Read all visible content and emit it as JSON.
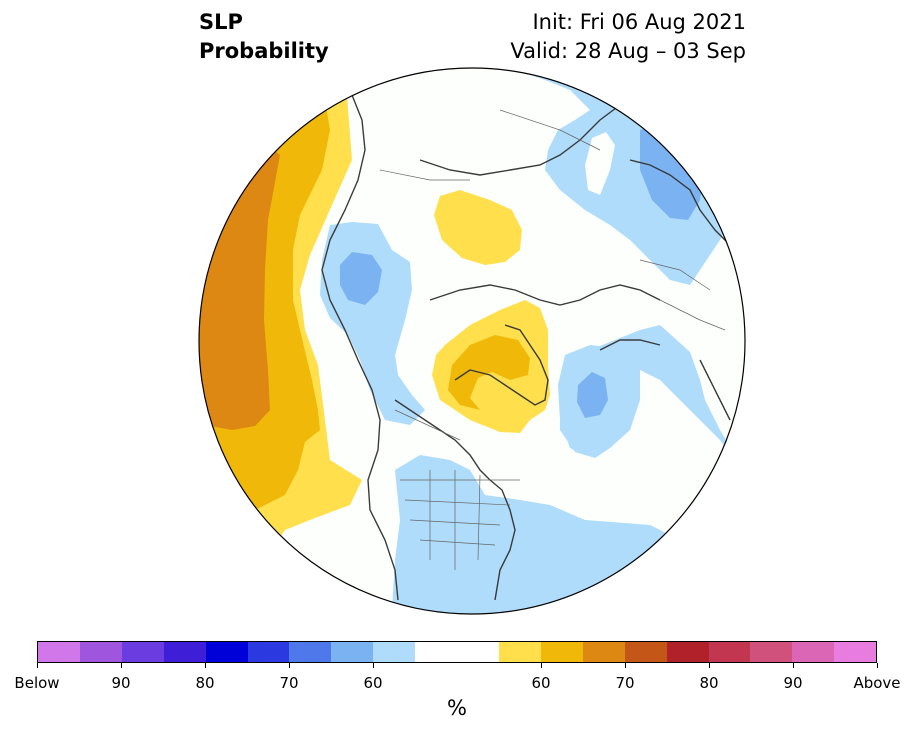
{
  "title": {
    "left_line1": "SLP",
    "left_line2": "Probability",
    "right_line1": "Init: Fri 06 Aug 2021",
    "right_line2": "Valid: 28 Aug – 03 Sep"
  },
  "colorbar": {
    "colors": [
      "#d277e9",
      "#a055df",
      "#6b3de0",
      "#3e1fd7",
      "#0000d9",
      "#2a3ae0",
      "#4f78ea",
      "#7bb3f2",
      "#aedcfa",
      "#ffffff",
      "#ffffff",
      "#ffe04c",
      "#f0b90a",
      "#dc8812",
      "#c45717",
      "#b0212a",
      "#c23650",
      "#cf517c",
      "#dc66b6",
      "#e87ddf"
    ],
    "labels": [
      {
        "text": "Below",
        "index": 0
      },
      {
        "text": "90",
        "index": 2
      },
      {
        "text": "80",
        "index": 4
      },
      {
        "text": "70",
        "index": 6
      },
      {
        "text": "60",
        "index": 8
      },
      {
        "text": "60",
        "index": 12
      },
      {
        "text": "70",
        "index": 14
      },
      {
        "text": "80",
        "index": 16
      },
      {
        "text": "90",
        "index": 18
      },
      {
        "text": "Above",
        "index": 20
      }
    ],
    "unit": "%"
  },
  "map_colors": {
    "background": "#fcfffc",
    "above_60": "#ffe04c",
    "above_65": "#f0b90a",
    "above_70": "#dc8812",
    "below_55": "#aedcfa",
    "below_60": "#7bb3f2",
    "coast": "#3a3a3a",
    "border": "#666666"
  }
}
